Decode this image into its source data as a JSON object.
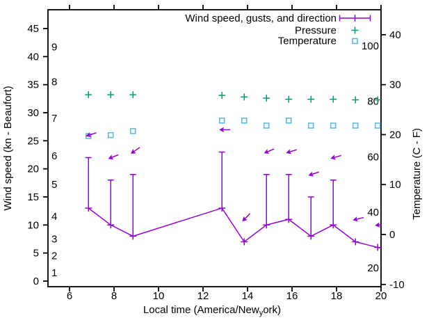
{
  "chart_data": {
    "type": "line",
    "title": "",
    "legend": [
      {
        "label": "Wind speed, gusts, and direction",
        "color": "#9400d3",
        "marker": "errorbar-plus"
      },
      {
        "label": "Pressure",
        "color": "#009e73",
        "marker": "plus"
      },
      {
        "label": "Temperature",
        "color": "#56b4e9",
        "marker": "open-square"
      }
    ],
    "x_axis": {
      "label_pre": "Local time (America/New",
      "label_sub": "y",
      "label_post": "ork)",
      "ticks": [
        6,
        8,
        10,
        12,
        14,
        16,
        18,
        20
      ],
      "range": [
        5.03,
        20.0
      ],
      "grid": false
    },
    "y_axis": {
      "label": "Wind speed (kn - Beaufort)",
      "ticks": [
        0,
        5,
        10,
        15,
        20,
        25,
        30,
        35,
        40,
        45
      ],
      "range": [
        -1,
        48.35
      ],
      "beaufort": [
        {
          "label": "1",
          "kn": 1.5
        },
        {
          "label": "2",
          "kn": 4.5
        },
        {
          "label": "3",
          "kn": 7.5
        },
        {
          "label": "4",
          "kn": 11.5
        },
        {
          "label": "5",
          "kn": 17.2
        },
        {
          "label": "6",
          "kn": 22.3
        },
        {
          "label": "7",
          "kn": 29.0
        },
        {
          "label": "8",
          "kn": 35.5
        },
        {
          "label": "9",
          "kn": 41.7
        }
      ]
    },
    "y2_axis": {
      "label": "Temperature (C - F)",
      "ticks_c": [
        -10,
        0,
        10,
        20,
        30,
        40
      ],
      "ticks_f": [
        20,
        40,
        60,
        80,
        100
      ],
      "range_c": [
        -10.45,
        45.0
      ]
    },
    "x": [
      6.85,
      7.85,
      8.85,
      12.85,
      13.85,
      14.85,
      15.85,
      16.85,
      17.85,
      18.85,
      19.85
    ],
    "series": {
      "wind": {
        "name": "Wind speed, gusts, and direction",
        "color": "#9400d3",
        "speed_kn": [
          13,
          10,
          8,
          13,
          7,
          10,
          11,
          8,
          10,
          7,
          6
        ],
        "gust_kn": [
          22,
          18,
          19,
          23,
          null,
          19,
          19,
          15,
          18,
          null,
          null
        ],
        "dir_angle_deg": [
          162,
          159,
          145,
          180,
          134,
          157,
          163,
          162,
          164,
          166,
          172
        ],
        "line_exit": {
          "t": 20.0,
          "kn": 5.9
        }
      },
      "pressure": {
        "name": "Pressure",
        "color": "#009e73",
        "values_on_wind_axis": [
          33.2,
          33.2,
          33.2,
          33.1,
          32.8,
          32.6,
          32.4,
          32.4,
          32.4,
          32.3,
          32.3
        ]
      },
      "temperature": {
        "name": "Temperature",
        "color": "#56b4e9",
        "values_c": [
          19.7,
          19.9,
          20.7,
          22.8,
          22.8,
          21.8,
          22.8,
          21.8,
          21.8,
          21.8,
          21.8
        ]
      }
    }
  }
}
